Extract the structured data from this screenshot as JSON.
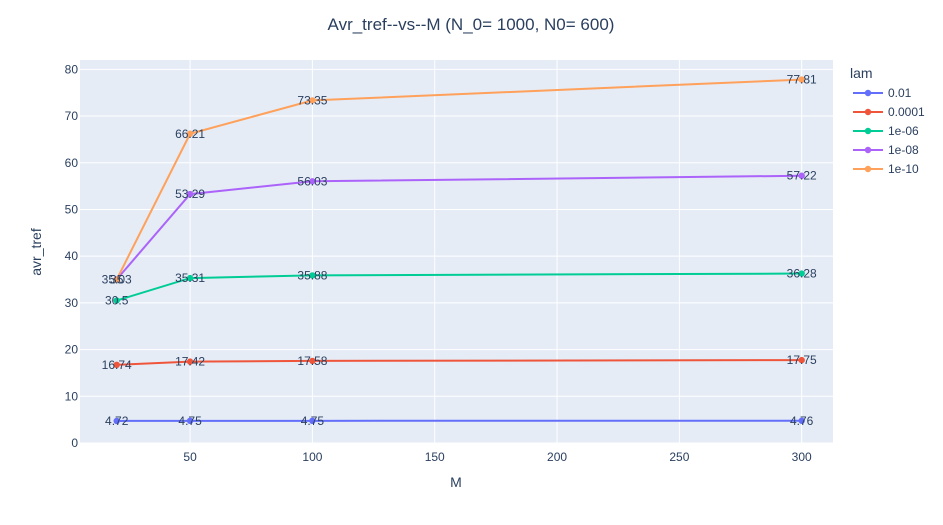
{
  "chart_data": {
    "type": "line",
    "title": "Avr_tref--vs--M  (N_0= 1000, N0= 600)",
    "xlabel": "M",
    "ylabel": "avr_tref",
    "xlim": [
      5,
      312.8
    ],
    "ylim": [
      0,
      82
    ],
    "xticks": [
      50,
      100,
      150,
      200,
      250,
      300
    ],
    "yticks": [
      0,
      10,
      20,
      30,
      40,
      50,
      60,
      70,
      80
    ],
    "legend_title": "lam",
    "legend_position": "right",
    "grid": true,
    "x": [
      20,
      50,
      100,
      300
    ],
    "series": [
      {
        "name": "0.01",
        "color": "#636efa",
        "values": [
          4.72,
          4.75,
          4.75,
          4.76
        ],
        "labels": [
          "4.72",
          "4.75",
          "4.75",
          "4.76"
        ]
      },
      {
        "name": "0.0001",
        "color": "#ef553b",
        "values": [
          16.74,
          17.42,
          17.58,
          17.75
        ],
        "labels": [
          "16.74",
          "17.42",
          "17.58",
          "17.75"
        ]
      },
      {
        "name": "1e-06",
        "color": "#00cc96",
        "values": [
          30.5,
          35.31,
          35.88,
          36.28
        ],
        "labels": [
          "30.5",
          "35.31",
          "35.88",
          "36.28"
        ]
      },
      {
        "name": "1e-08",
        "color": "#ab63fa",
        "values": [
          35.03,
          53.29,
          56.03,
          57.22
        ],
        "labels": [
          "35.03",
          "53.29",
          "56.03",
          "57.22"
        ]
      },
      {
        "name": "1e-10",
        "color": "#ffa15a",
        "values": [
          35,
          66.21,
          73.35,
          77.81
        ],
        "labels": [
          "35",
          "66.21",
          "73.35",
          "77.81"
        ]
      }
    ]
  }
}
